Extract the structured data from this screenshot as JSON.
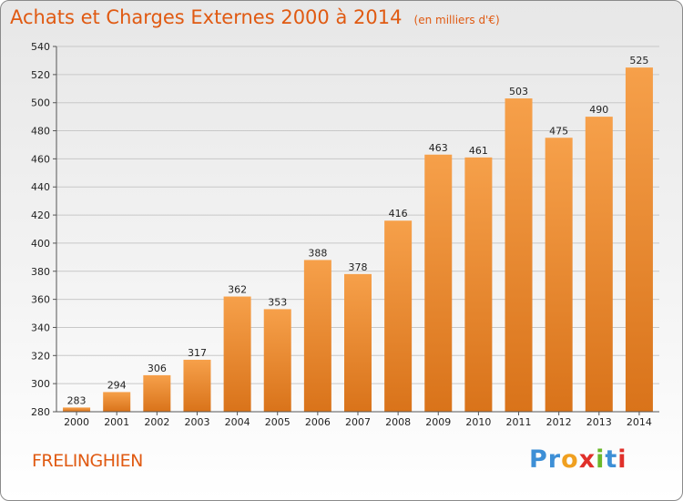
{
  "header": {
    "title": "Achats et Charges Externes 2000 à 2014",
    "subtitle": "(en milliers d'€)"
  },
  "location": "FRELINGHIEN",
  "brand": {
    "letters": [
      "P",
      "r",
      "o",
      "x",
      "i",
      "t",
      "i"
    ],
    "colors": [
      "#3d8fd6",
      "#3d8fd6",
      "#f0a020",
      "#e0302a",
      "#6ab82a",
      "#3d8fd6",
      "#e0302a"
    ]
  },
  "colors": {
    "bar": "#f4912e",
    "title": "#e05a12"
  },
  "chart_data": {
    "type": "bar",
    "title": "Achats et Charges Externes 2000 à 2014",
    "subtitle": "(en milliers d'€)",
    "categories": [
      "2000",
      "2001",
      "2002",
      "2003",
      "2004",
      "2005",
      "2006",
      "2007",
      "2008",
      "2009",
      "2010",
      "2011",
      "2012",
      "2013",
      "2014"
    ],
    "values": [
      283,
      294,
      306,
      317,
      362,
      353,
      388,
      378,
      416,
      463,
      461,
      503,
      475,
      490,
      525
    ],
    "value_labels": [
      "283",
      "294",
      "306",
      "317",
      "362",
      "353",
      "388",
      "378",
      "416",
      "463",
      "461",
      "503",
      "475",
      "490",
      "525"
    ],
    "ylim": [
      280,
      540
    ],
    "yticks": [
      "280",
      "300",
      "320",
      "340",
      "360",
      "380",
      "400",
      "420",
      "440",
      "460",
      "480",
      "500",
      "520",
      "540"
    ],
    "grid": true
  }
}
